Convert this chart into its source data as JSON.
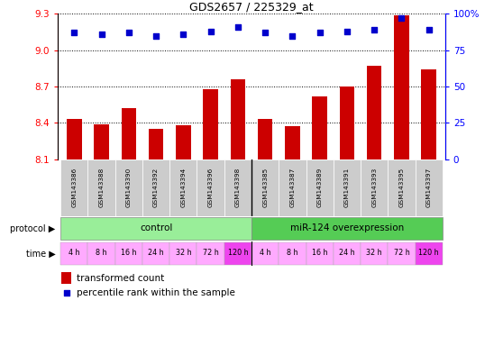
{
  "title": "GDS2657 / 225329_at",
  "samples": [
    "GSM143386",
    "GSM143388",
    "GSM143390",
    "GSM143392",
    "GSM143394",
    "GSM143396",
    "GSM143398",
    "GSM143385",
    "GSM143387",
    "GSM143389",
    "GSM143391",
    "GSM143393",
    "GSM143395",
    "GSM143397"
  ],
  "bar_values": [
    8.43,
    8.39,
    8.52,
    8.35,
    8.38,
    8.68,
    8.76,
    8.43,
    8.37,
    8.62,
    8.7,
    8.87,
    9.29,
    8.84
  ],
  "percentile_values": [
    87,
    86,
    87,
    85,
    86,
    88,
    91,
    87,
    85,
    87,
    88,
    89,
    97,
    89
  ],
  "ylim_left": [
    8.1,
    9.3
  ],
  "ylim_right": [
    0,
    100
  ],
  "yticks_left": [
    8.1,
    8.4,
    8.7,
    9.0,
    9.3
  ],
  "yticks_right": [
    0,
    25,
    50,
    75,
    100
  ],
  "bar_color": "#cc0000",
  "dot_color": "#0000cc",
  "protocol_control_label": "control",
  "protocol_miR_label": "miR-124 overexpression",
  "protocol_color_control": "#99ee99",
  "protocol_color_miR": "#55cc55",
  "time_labels": [
    "4 h",
    "8 h",
    "16 h",
    "24 h",
    "32 h",
    "72 h",
    "120 h",
    "4 h",
    "8 h",
    "16 h",
    "24 h",
    "32 h",
    "72 h",
    "120 h"
  ],
  "time_bg": [
    "#ffaaff",
    "#ffaaff",
    "#ffaaff",
    "#ffaaff",
    "#ffaaff",
    "#ffaaff",
    "#ee44ee",
    "#ffaaff",
    "#ffaaff",
    "#ffaaff",
    "#ffaaff",
    "#ffaaff",
    "#ffaaff",
    "#ee44ee"
  ],
  "n_control": 7,
  "legend_bar_label": "transformed count",
  "legend_dot_label": "percentile rank within the sample",
  "background_color": "#ffffff",
  "sample_bg_color": "#cccccc"
}
